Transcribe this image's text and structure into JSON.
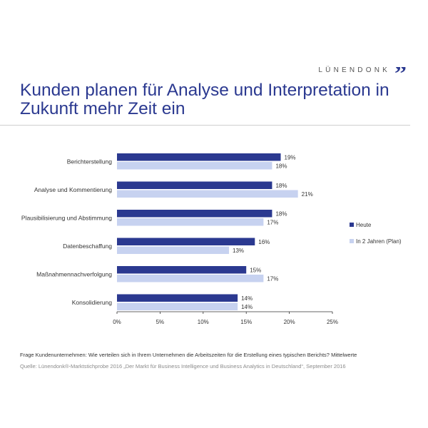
{
  "brand": {
    "name": "LÜNENDONK",
    "quote_glyph": "”"
  },
  "title": "Kunden planen für Analyse und Interpretation in Zukunft mehr Zeit ein",
  "footnote": "Frage Kundenunternehmen: Wie verteilen sich in Ihrem Unternehmen die Arbeitszeiten für die Erstellung eines typischen Berichts? Mittelwerte",
  "source": "Quelle: Lünendonk®-Marktstichprobe 2016 „Der Markt für Business Intelligence und Business Analytics in Deutschland“, September 2016",
  "colors": {
    "brand": "#2b3990",
    "heute": "#2b3990",
    "plan": "#c7d2f0"
  },
  "chart_data": {
    "type": "bar",
    "orientation": "horizontal",
    "title": "",
    "xlabel": "",
    "ylabel": "",
    "categories": [
      "Berichterstellung",
      "Analyse und Kommentierung",
      "Plausibilisierung und Abstimmung",
      "Datenbeschaffung",
      "Maßnahmennachverfolgung",
      "Konsolidierung"
    ],
    "series": [
      {
        "name": "Heute",
        "values": [
          19,
          18,
          18,
          16,
          15,
          14
        ],
        "labels": [
          "19%",
          "18%",
          "18%",
          "16%",
          "15%",
          "14%"
        ],
        "color": "#2b3990"
      },
      {
        "name": "In 2 Jahren (Plan)",
        "values": [
          18,
          21,
          17,
          13,
          17,
          14
        ],
        "labels": [
          "18%",
          "21%",
          "17%",
          "13%",
          "17%",
          "14%"
        ],
        "color": "#c7d2f0"
      }
    ],
    "xlim": [
      0,
      25
    ],
    "x_ticks": [
      0,
      5,
      10,
      15,
      20,
      25
    ],
    "x_tick_labels": [
      "0%",
      "5%",
      "10%",
      "15%",
      "20%",
      "25%"
    ],
    "grid": false,
    "legend_position": "right"
  }
}
